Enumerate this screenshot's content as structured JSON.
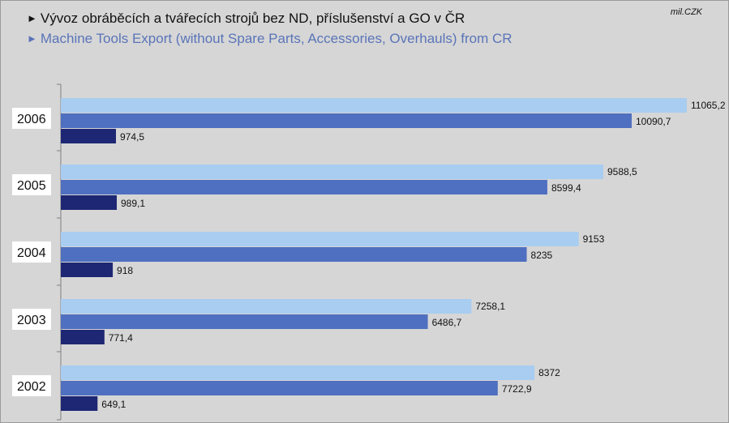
{
  "title": "Vývoz obráběcích a tvářecích strojů bez ND, příslušenství a GO v ČR",
  "subtitle": "Machine Tools Export (without Spare Parts, Accessories, Overhauls) from CR",
  "unit": "mil.CZK",
  "marker": "►",
  "chart_data": {
    "type": "bar",
    "orientation": "horizontal",
    "categories": [
      "2006",
      "2005",
      "2004",
      "2003",
      "2002"
    ],
    "series": [
      {
        "color": "#a8cdf0",
        "values": [
          11065.2,
          9588.5,
          9153,
          7258.1,
          8372
        ],
        "labels": [
          "11065,2",
          "9588,5",
          "9153",
          "7258,1",
          "8372"
        ]
      },
      {
        "color": "#4f6fc0",
        "values": [
          10090.7,
          8599.4,
          8235,
          6486.7,
          7722.9
        ],
        "labels": [
          "10090,7",
          "8599,4",
          "8235",
          "6486,7",
          "7722,9"
        ]
      },
      {
        "color": "#1d2773",
        "values": [
          974.5,
          989.1,
          918,
          771.4,
          649.1
        ],
        "labels": [
          "974,5",
          "989,1",
          "918",
          "771,4",
          "649,1"
        ]
      }
    ],
    "xlim": [
      0,
      11065.2
    ],
    "legend": "none",
    "grid": false
  }
}
